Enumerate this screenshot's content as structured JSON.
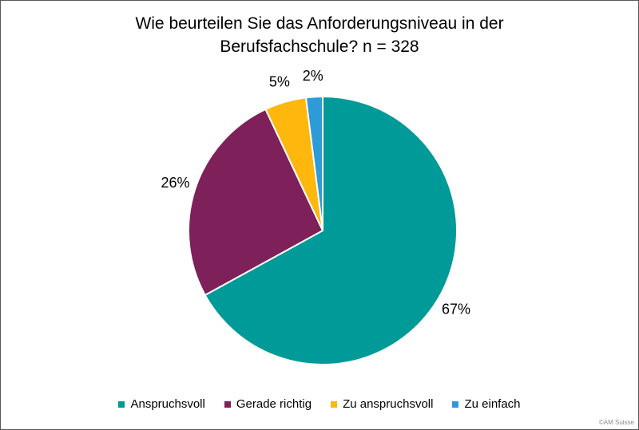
{
  "title": {
    "line1": "Wie beurteilen Sie das Anforderungsniveau in der",
    "line2": "Berufsfachschule? n = 328"
  },
  "chart_data": {
    "type": "pie",
    "title": "Wie beurteilen Sie das Anforderungsniveau in der Berufsfachschule? n = 328",
    "n": 328,
    "categories": [
      "Anspruchsvoll",
      "Gerade richtig",
      "Zu anspruchsvoll",
      "Zu einfach"
    ],
    "values": [
      67,
      26,
      5,
      2
    ],
    "unit": "%",
    "value_labels": [
      "67%",
      "26%",
      "5%",
      "2%"
    ],
    "colors": [
      "#009A98",
      "#7E2059",
      "#FDB70D",
      "#2D9BD7"
    ],
    "start_angle_deg": 0,
    "direction": "clockwise",
    "slice_border_color": "#FFFFFF",
    "legend_position": "bottom",
    "label_position": "outside-end"
  },
  "legend": {
    "items": [
      {
        "label": "Anspruchsvoll",
        "color": "#009A98"
      },
      {
        "label": "Gerade richtig",
        "color": "#7E2059"
      },
      {
        "label": "Zu anspruchsvoll",
        "color": "#FDB70D"
      },
      {
        "label": "Zu einfach",
        "color": "#2D9BD7"
      }
    ]
  },
  "footer": {
    "copyright": "©AM Suisse"
  }
}
